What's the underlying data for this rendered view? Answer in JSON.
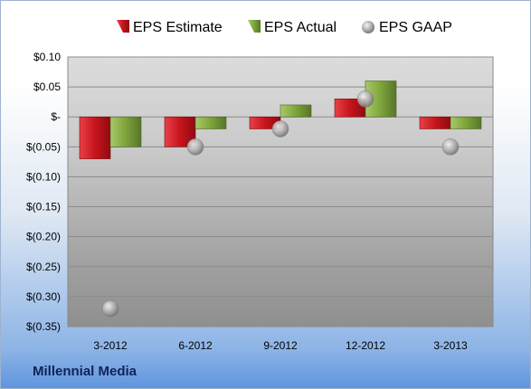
{
  "company": "Millennial Media",
  "colors": {
    "estimate": "#c8141c",
    "actual": "#7ea43a",
    "gaap": "#9a9a9a"
  },
  "chart_data": {
    "type": "bar",
    "title": "",
    "xlabel": "",
    "ylabel": "",
    "categories": [
      "3-2012",
      "6-2012",
      "9-2012",
      "12-2012",
      "3-2013"
    ],
    "series": [
      {
        "name": "EPS Estimate",
        "kind": "bar",
        "values": [
          -0.07,
          -0.05,
          -0.02,
          0.03,
          -0.02
        ]
      },
      {
        "name": "EPS Actual",
        "kind": "bar",
        "values": [
          -0.05,
          -0.02,
          0.02,
          0.06,
          -0.02
        ]
      },
      {
        "name": "EPS GAAP",
        "kind": "marker",
        "values": [
          -0.32,
          -0.05,
          -0.02,
          0.03,
          -0.05
        ]
      }
    ],
    "ylim": [
      -0.35,
      0.1
    ],
    "yticks": [
      0.1,
      0.05,
      0.0,
      -0.05,
      -0.1,
      -0.15,
      -0.2,
      -0.25,
      -0.3,
      -0.35
    ],
    "ytick_labels": [
      "$0.10",
      "$0.05",
      "$-",
      "$(0.05)",
      "$(0.10)",
      "$(0.15)",
      "$(0.20)",
      "$(0.25)",
      "$(0.30)",
      "$(0.35)"
    ],
    "grid": true,
    "legend": "top"
  }
}
